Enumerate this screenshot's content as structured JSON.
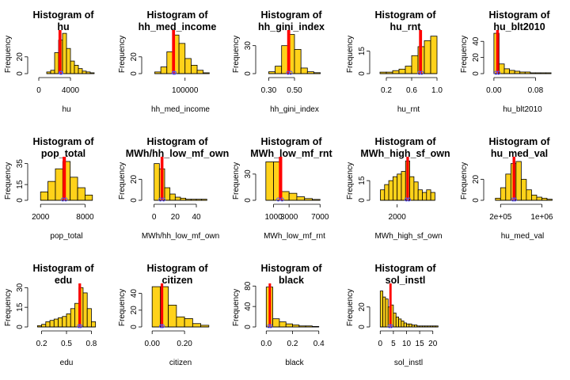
{
  "colors": {
    "bar": "#FFD21A",
    "bar_stroke": "#000000",
    "mean_line": "#FF0000",
    "median_line": "#FF0000",
    "density_point": "#5555FF"
  },
  "chart_data": [
    {
      "type": "bar",
      "title_line1": "Histogram of",
      "title_line2": "hu",
      "xlabel": "hu",
      "ylabel": "Frequency",
      "bin_edges": [
        1000,
        1500,
        2000,
        2500,
        3000,
        3500,
        4000,
        4500,
        5000,
        5500,
        6000,
        6500,
        7000
      ],
      "counts": [
        2,
        4,
        25,
        40,
        48,
        30,
        15,
        10,
        6,
        3,
        2,
        1
      ],
      "xlim": [
        -900,
        7900
      ],
      "ylim": [
        0,
        50
      ],
      "xticks": [
        0,
        4000
      ],
      "xticks_labels": [
        "0",
        "4000"
      ],
      "yticks": [
        0,
        20
      ],
      "yticks_labels": [
        "0",
        "20"
      ],
      "vlines": [
        2600,
        2750
      ],
      "points": [
        2750,
        2850
      ]
    },
    {
      "type": "bar",
      "title_line1": "Histogram of",
      "title_line2": "hh_med_income",
      "xlabel": "hh_med_income",
      "ylabel": "Frequency",
      "bin_edges": [
        0,
        20000,
        40000,
        60000,
        80000,
        100000,
        120000,
        140000,
        160000,
        180000
      ],
      "counts": [
        2,
        8,
        26,
        46,
        36,
        18,
        10,
        4,
        1
      ],
      "xlim": [
        -30000,
        200000
      ],
      "ylim": [
        0,
        50
      ],
      "xticks": [
        100000
      ],
      "xticks_labels": [
        "100000"
      ],
      "yticks": [
        0,
        20
      ],
      "yticks_labels": [
        "0",
        "20"
      ],
      "vlines": [
        60000,
        64000
      ],
      "points": [
        62000,
        66000
      ]
    },
    {
      "type": "bar",
      "title_line1": "Histogram of",
      "title_line2": "hh_gini_index",
      "xlabel": "hh_gini_index",
      "ylabel": "Frequency",
      "bin_edges": [
        0.3,
        0.35,
        0.4,
        0.45,
        0.5,
        0.55,
        0.6,
        0.65,
        0.7
      ],
      "counts": [
        2,
        8,
        30,
        42,
        26,
        6,
        2,
        1
      ],
      "xlim": [
        0.23,
        0.77
      ],
      "ylim": [
        0,
        45
      ],
      "xticks": [
        0.3,
        0.5
      ],
      "xticks_labels": [
        "0.30",
        "0.50"
      ],
      "yticks": [
        0,
        30
      ],
      "yticks_labels": [
        "0",
        "30"
      ],
      "vlines": [
        0.45,
        0.46
      ],
      "points": [
        0.45,
        0.47
      ]
    },
    {
      "type": "bar",
      "title_line1": "Histogram of",
      "title_line2": "hu_rnt",
      "xlabel": "hu_rnt",
      "ylabel": "Frequency",
      "bin_edges": [
        0.1,
        0.2,
        0.3,
        0.4,
        0.5,
        0.6,
        0.7,
        0.8,
        0.9,
        1.0
      ],
      "counts": [
        1,
        1,
        2,
        3,
        5,
        12,
        18,
        22,
        25
      ],
      "xlim": [
        0.0,
        1.1
      ],
      "ylim": [
        0,
        28
      ],
      "xticks": [
        0.2,
        0.6,
        1.0
      ],
      "xticks_labels": [
        "0.2",
        "0.6",
        "1.0"
      ],
      "yticks": [
        0,
        15
      ],
      "yticks_labels": [
        "0",
        "15"
      ],
      "vlines": [
        0.73,
        0.75
      ],
      "points": [
        0.72,
        0.76
      ]
    },
    {
      "type": "bar",
      "title_line1": "Histogram of",
      "title_line2": "hu_blt2010",
      "xlabel": "hu_blt2010",
      "ylabel": "Frequency",
      "bin_edges": [
        0.0,
        0.01,
        0.02,
        0.03,
        0.04,
        0.05,
        0.06,
        0.07,
        0.08,
        0.09,
        0.1,
        0.11
      ],
      "counts": [
        50,
        12,
        6,
        4,
        3,
        2,
        2,
        1,
        1,
        1,
        1
      ],
      "xlim": [
        -0.012,
        0.122
      ],
      "ylim": [
        0,
        52
      ],
      "xticks": [
        0.0,
        0.08
      ],
      "xticks_labels": [
        "0.00",
        "0.08"
      ],
      "yticks": [
        0,
        20,
        40
      ],
      "yticks_labels": [
        "0",
        "20",
        "40"
      ],
      "vlines": [
        0.006,
        0.008
      ],
      "points": [
        0.004,
        0.009
      ]
    },
    {
      "type": "bar",
      "title_line1": "Histogram of",
      "title_line2": "pop_total",
      "xlabel": "pop_total",
      "ylabel": "Frequency",
      "bin_edges": [
        2000,
        3000,
        4000,
        5000,
        6000,
        7000,
        8000,
        9000
      ],
      "counts": [
        8,
        18,
        30,
        37,
        22,
        12,
        5
      ],
      "xlim": [
        800,
        10200
      ],
      "ylim": [
        0,
        40
      ],
      "xticks": [
        2000,
        8000
      ],
      "xticks_labels": [
        "2000",
        "8000"
      ],
      "yticks": [
        0,
        15,
        35
      ],
      "yticks_labels": [
        "0",
        "15",
        "35"
      ],
      "vlines": [
        5100,
        5300
      ],
      "points": [
        5000,
        5400
      ]
    },
    {
      "type": "bar",
      "title_line1": "Histogram of",
      "title_line2": "MWh/hh_low_mf_own",
      "xlabel": "MWh/hh_low_mf_own",
      "ylabel": "Frequency",
      "bin_edges": [
        0,
        5,
        10,
        15,
        20,
        25,
        30,
        35,
        40,
        45,
        50
      ],
      "counts": [
        35,
        30,
        12,
        6,
        3,
        2,
        1,
        1,
        1,
        1
      ],
      "xlim": [
        -8,
        58
      ],
      "ylim": [
        0,
        40
      ],
      "xticks": [
        0,
        20,
        40
      ],
      "xticks_labels": [
        "0",
        "20",
        "40"
      ],
      "yticks": [
        0,
        20
      ],
      "yticks_labels": [
        "0",
        "20"
      ],
      "vlines": [
        7,
        8
      ],
      "points": [
        6,
        9
      ]
    },
    {
      "type": "bar",
      "title_line1": "Histogram of",
      "title_line2": "MWh_low_mf_rnt",
      "xlabel": "MWh_low_mf_rnt",
      "ylabel": "Frequency",
      "bin_edges": [
        0,
        1000,
        2000,
        3000,
        4000,
        5000,
        6000,
        7000
      ],
      "counts": [
        44,
        44,
        10,
        8,
        4,
        2,
        1
      ],
      "xlim": [
        -800,
        8200
      ],
      "ylim": [
        0,
        48
      ],
      "xticks": [
        1000,
        3000,
        7000
      ],
      "xticks_labels": [
        "1000",
        "3000",
        "7000"
      ],
      "yticks": [
        0,
        30
      ],
      "yticks_labels": [
        "0",
        "30"
      ],
      "vlines": [
        1800,
        2000
      ],
      "points": [
        1600,
        2100
      ]
    },
    {
      "type": "bar",
      "title_line1": "Histogram of",
      "title_line2": "MWh_high_sf_own",
      "xlabel": "MWh_high_sf_own",
      "ylabel": "Frequency",
      "bin_edges": [
        0,
        500,
        1000,
        1500,
        2000,
        2500,
        3000,
        3500,
        4000,
        4500,
        5000,
        5500,
        6000,
        6500
      ],
      "counts": [
        8,
        12,
        15,
        18,
        20,
        22,
        30,
        18,
        14,
        8,
        6,
        8,
        6
      ],
      "xlim": [
        -800,
        7500
      ],
      "ylim": [
        0,
        32
      ],
      "xticks": [
        2000
      ],
      "xticks_labels": [
        "2000"
      ],
      "yticks": [
        0,
        15
      ],
      "yticks_labels": [
        "0",
        "15"
      ],
      "vlines": [
        3200,
        3300
      ],
      "points": [
        3100,
        3400
      ]
    },
    {
      "type": "bar",
      "title_line1": "Histogram of",
      "title_line2": "hu_med_val",
      "xlabel": "hu_med_val",
      "ylabel": "Frequency",
      "bin_edges": [
        100000,
        200000,
        300000,
        400000,
        500000,
        600000,
        700000,
        800000,
        900000,
        1000000,
        1100000,
        1200000
      ],
      "counts": [
        2,
        12,
        25,
        35,
        37,
        20,
        10,
        5,
        3,
        2,
        1
      ],
      "xlim": [
        -50000,
        1300000
      ],
      "ylim": [
        0,
        40
      ],
      "xticks": [
        200000,
        1000000
      ],
      "xticks_labels": [
        "2e+05",
        "1e+06"
      ],
      "yticks": [
        0,
        20
      ],
      "yticks_labels": [
        "0",
        "20"
      ],
      "vlines": [
        450000,
        470000
      ],
      "points": [
        440000,
        480000
      ]
    },
    {
      "type": "bar",
      "title_line1": "Histogram of",
      "title_line2": "edu",
      "xlabel": "edu",
      "ylabel": "Frequency",
      "bin_edges": [
        0.15,
        0.2,
        0.25,
        0.3,
        0.35,
        0.4,
        0.45,
        0.5,
        0.55,
        0.6,
        0.65,
        0.7,
        0.75,
        0.8,
        0.85
      ],
      "counts": [
        1,
        2,
        4,
        5,
        6,
        7,
        8,
        10,
        14,
        18,
        30,
        26,
        14,
        4
      ],
      "xlim": [
        0.08,
        0.92
      ],
      "ylim": [
        0,
        32
      ],
      "xticks": [
        0.2,
        0.5,
        0.8
      ],
      "xticks_labels": [
        "0.2",
        "0.5",
        "0.8"
      ],
      "yticks": [
        0,
        15,
        30
      ],
      "yticks_labels": [
        "0",
        "15",
        "30"
      ],
      "vlines": [
        0.655,
        0.665
      ],
      "points": [
        0.65,
        0.67
      ]
    },
    {
      "type": "bar",
      "title_line1": "Histogram of",
      "title_line2": "citizen",
      "xlabel": "citizen",
      "ylabel": "Frequency",
      "bin_edges": [
        0.0,
        0.05,
        0.1,
        0.15,
        0.2,
        0.25,
        0.3,
        0.35
      ],
      "counts": [
        48,
        48,
        26,
        12,
        10,
        4,
        2
      ],
      "xlim": [
        -0.04,
        0.39
      ],
      "ylim": [
        0,
        50
      ],
      "xticks": [
        0.0,
        0.2
      ],
      "xticks_labels": [
        "0.00",
        "0.20"
      ],
      "yticks": [
        0,
        20,
        40
      ],
      "yticks_labels": [
        "0",
        "20",
        "40"
      ],
      "vlines": [
        0.058,
        0.063
      ],
      "points": [
        0.055,
        0.065
      ]
    },
    {
      "type": "bar",
      "title_line1": "Histogram of",
      "title_line2": "black",
      "xlabel": "black",
      "ylabel": "Frequency",
      "bin_edges": [
        0.0,
        0.05,
        0.1,
        0.15,
        0.2,
        0.25,
        0.3,
        0.35,
        0.4
      ],
      "counts": [
        78,
        16,
        10,
        6,
        4,
        2,
        2,
        1
      ],
      "xlim": [
        -0.05,
        0.48
      ],
      "ylim": [
        0,
        82
      ],
      "xticks": [
        0.0,
        0.2,
        0.4
      ],
      "xticks_labels": [
        "0.0",
        "0.2",
        "0.4"
      ],
      "yticks": [
        0,
        40,
        80
      ],
      "yticks_labels": [
        "0",
        "40",
        "80"
      ],
      "vlines": [
        0.025,
        0.03
      ],
      "points": [
        0.02,
        0.035
      ]
    },
    {
      "type": "bar",
      "title_line1": "Histogram of",
      "title_line2": "sol_instl",
      "xlabel": "sol_instl",
      "ylabel": "Frequency",
      "bin_edges": [
        0,
        1,
        2,
        3,
        4,
        5,
        6,
        7,
        8,
        9,
        10,
        11,
        12,
        13,
        14,
        15,
        16,
        17,
        18,
        19,
        20,
        21,
        22
      ],
      "counts": [
        36,
        30,
        28,
        20,
        22,
        14,
        10,
        8,
        6,
        4,
        3,
        3,
        2,
        2,
        1,
        1,
        1,
        1,
        1,
        1,
        1,
        1
      ],
      "xlim": [
        -2.5,
        24
      ],
      "ylim": [
        0,
        42
      ],
      "xticks": [
        0,
        5,
        10,
        15,
        20
      ],
      "xticks_labels": [
        "0",
        "5",
        "10",
        "15",
        "20"
      ],
      "yticks": [
        0,
        20
      ],
      "yticks_labels": [
        "0",
        "20"
      ],
      "vlines": [
        3.8,
        4.0
      ],
      "points": [
        3.5,
        4.2
      ]
    }
  ]
}
